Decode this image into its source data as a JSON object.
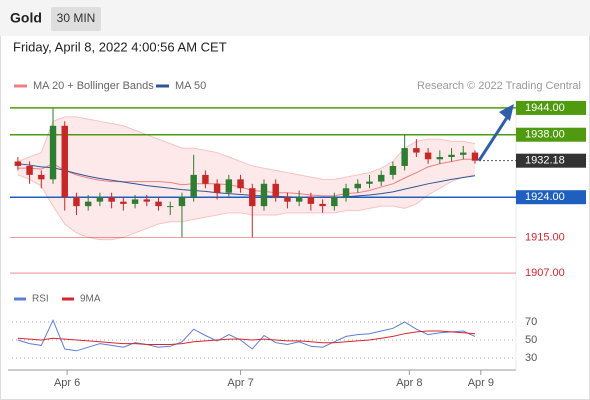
{
  "header": {
    "title": "Gold",
    "interval": "30 MIN",
    "timestamp": "Friday, April 8, 2022 4:00:56 AM CET"
  },
  "chart_data": {
    "type": "candlestick",
    "legend": [
      {
        "name": "MA 20 + Bollinger Bands",
        "color": "#f08080"
      },
      {
        "name": "MA 50",
        "color": "#2f5597"
      }
    ],
    "credit": "Research © 2022 Trading Central",
    "up_color": "#2e7d32",
    "down_color": "#c62828",
    "xlim": [
      -0.5,
      42.5
    ],
    "xticks": [
      {
        "value": 4.2,
        "label": "Apr 6"
      },
      {
        "value": 19,
        "label": "Apr 7"
      },
      {
        "value": 33.4,
        "label": "Apr 8"
      },
      {
        "value": 39.5,
        "label": "Apr 9"
      }
    ],
    "ylim": [
      1905,
      1946
    ],
    "open": [
      1932,
      1931,
      1929,
      1928,
      1940,
      1924,
      1922,
      1923,
      1924,
      1923,
      1922.5,
      1923.5,
      1923,
      1922,
      1922,
      1924,
      1929,
      1927,
      1925,
      1928,
      1926,
      1922,
      1927,
      1924,
      1923,
      1924,
      1922.5,
      1922,
      1924,
      1926,
      1927,
      1927.5,
      1929,
      1931,
      1935,
      1934,
      1932.5,
      1933,
      1933.5,
      1934
    ],
    "high": [
      1933,
      1932,
      1930,
      1944,
      1941,
      1925,
      1924.5,
      1925,
      1925,
      1924,
      1924.5,
      1924.5,
      1924,
      1923,
      1925,
      1933.5,
      1930,
      1928,
      1929,
      1929,
      1927,
      1928,
      1928,
      1925,
      1925.5,
      1925,
      1923.5,
      1925,
      1927,
      1928,
      1929,
      1930,
      1932,
      1938,
      1937,
      1935,
      1934.5,
      1935,
      1935.5,
      1934.5
    ],
    "low": [
      1930,
      1927,
      1926,
      1927,
      1921,
      1920,
      1921,
      1922,
      1921.5,
      1921,
      1921.5,
      1922,
      1921,
      1920,
      1915,
      1923,
      1926,
      1923.5,
      1924,
      1925,
      1915,
      1921,
      1923,
      1921.5,
      1922,
      1921,
      1920.5,
      1921,
      1923,
      1925,
      1926,
      1926.5,
      1928,
      1930,
      1933,
      1931.5,
      1931.5,
      1932,
      1932.5,
      1931.5
    ],
    "close": [
      1931,
      1929,
      1928,
      1940,
      1924,
      1922,
      1923,
      1924,
      1923,
      1922.5,
      1923.5,
      1923,
      1922,
      1922,
      1924,
      1929,
      1927,
      1925,
      1928,
      1926,
      1922,
      1927,
      1924,
      1923,
      1924,
      1922.5,
      1922,
      1924,
      1926,
      1927,
      1927.5,
      1929,
      1931,
      1935,
      1934,
      1932.5,
      1933,
      1933.5,
      1934,
      1932.18
    ],
    "bollinger_upper": [
      1932,
      1933,
      1934,
      1941,
      1942,
      1942,
      1941.5,
      1941,
      1940.5,
      1940,
      1939,
      1938,
      1937,
      1936,
      1935,
      1935,
      1934.5,
      1934,
      1933,
      1932,
      1931,
      1930.5,
      1930,
      1929.5,
      1929,
      1928.5,
      1928,
      1928,
      1928.5,
      1929,
      1929.5,
      1930.5,
      1932,
      1935,
      1936.5,
      1937,
      1937,
      1936.5,
      1936.5,
      1936
    ],
    "bollinger_lower": [
      1929,
      1928,
      1926.5,
      1922,
      1918,
      1916,
      1915,
      1914.5,
      1914.5,
      1915,
      1916,
      1917,
      1918,
      1918.5,
      1918.5,
      1919,
      1919.5,
      1920,
      1920.5,
      1920.5,
      1920,
      1920,
      1920,
      1920.5,
      1920.5,
      1920.5,
      1920.5,
      1920.5,
      1921,
      1921,
      1921.5,
      1922,
      1922,
      1921.5,
      1922.5,
      1924.5,
      1926,
      1927.5,
      1928.5,
      1929
    ],
    "ma20": [
      1930.5,
      1930.5,
      1930.3,
      1931.5,
      1930,
      1929,
      1928.3,
      1927.8,
      1927.5,
      1927.5,
      1927.5,
      1927.5,
      1927.5,
      1927.3,
      1926.8,
      1927,
      1927,
      1927,
      1926.8,
      1926.3,
      1925.5,
      1925.3,
      1925,
      1925,
      1924.8,
      1924.5,
      1924.3,
      1924.3,
      1924.8,
      1925,
      1925.5,
      1926.3,
      1927,
      1928.3,
      1929.5,
      1930.8,
      1931.5,
      1932,
      1932.5,
      1932.5
    ],
    "ma50": [
      1931.5,
      1931.2,
      1930.8,
      1930.6,
      1930,
      1929.3,
      1928.7,
      1928.2,
      1927.8,
      1927.4,
      1927,
      1926.6,
      1926.3,
      1926,
      1925.7,
      1925.5,
      1925.3,
      1925,
      1924.8,
      1924.6,
      1924.4,
      1924.3,
      1924.2,
      1924.1,
      1924,
      1924,
      1924,
      1924,
      1924.1,
      1924.3,
      1924.5,
      1924.8,
      1925.2,
      1925.8,
      1926.4,
      1927,
      1927.5,
      1928,
      1928.4,
      1928.8
    ],
    "levels": [
      {
        "value": 1944,
        "label": "1944.00",
        "color": "#4f9a0e",
        "style": "box"
      },
      {
        "value": 1938,
        "label": "1938.00",
        "color": "#4f9a0e",
        "style": "box"
      },
      {
        "value": 1932.18,
        "label": "1932.18",
        "color": "#333333",
        "style": "current"
      },
      {
        "value": 1924,
        "label": "1924.00",
        "color": "#1f5fbf",
        "style": "box"
      },
      {
        "value": 1915,
        "label": "1915.00",
        "color": "#d9262e",
        "style": "text"
      },
      {
        "value": 1907,
        "label": "1907.00",
        "color": "#d9262e",
        "style": "text"
      }
    ],
    "rsi": {
      "series": [
        {
          "name": "RSI",
          "color": "#5b7fd6",
          "values": [
            50,
            46,
            44,
            72,
            40,
            38,
            42,
            46,
            44,
            42,
            47,
            45,
            42,
            43,
            48,
            62,
            55,
            49,
            56,
            50,
            40,
            55,
            47,
            45,
            48,
            43,
            42,
            48,
            54,
            56,
            57,
            60,
            63,
            70,
            62,
            56,
            58,
            59,
            60,
            54
          ]
        },
        {
          "name": "9MA",
          "color": "#d9262e",
          "values": [
            52,
            51,
            50,
            52,
            51,
            50,
            49,
            48,
            47,
            46,
            46,
            45,
            45,
            45,
            46,
            48,
            49,
            50,
            51,
            51,
            50,
            51,
            50,
            49,
            49,
            48,
            47,
            47,
            48,
            49,
            50,
            52,
            54,
            57,
            59,
            60,
            60,
            59,
            58,
            57
          ]
        }
      ],
      "ylim": [
        15,
        85
      ],
      "yticks": [
        70,
        50,
        30
      ]
    }
  }
}
